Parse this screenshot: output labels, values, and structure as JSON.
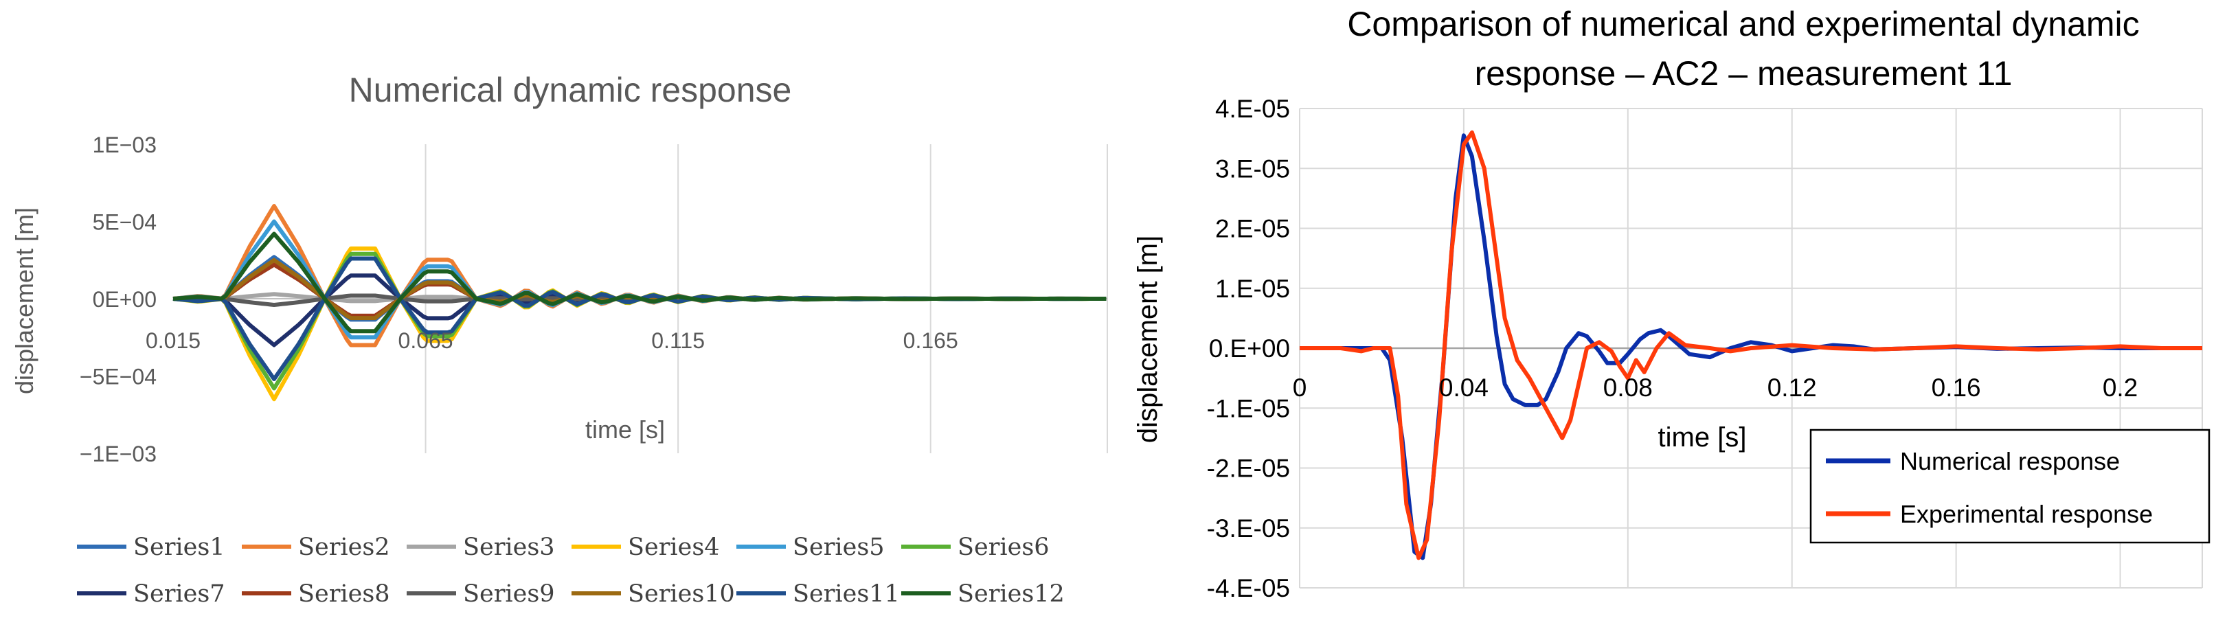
{
  "chart_data": [
    {
      "type": "line",
      "title": "Numerical dynamic response",
      "xlabel": "time [s]",
      "ylabel": "displacement [m]",
      "xlim": [
        0.015,
        0.2
      ],
      "ylim": [
        -0.001,
        0.001
      ],
      "x_ticks": [
        0.015,
        0.065,
        0.115,
        0.165
      ],
      "x_tick_labels": [
        "0.015",
        "0.065",
        "0.115",
        "0.165"
      ],
      "y_ticks": [
        0.001,
        0.0005,
        0,
        -0.0005,
        -0.001
      ],
      "y_tick_labels": [
        "1E−03",
        "5E−04",
        "0E+00",
        "−5E−04",
        "−1E−03"
      ],
      "grid": "vertical",
      "legend_position": "bottom",
      "envelope": {
        "x": [
          0.015,
          0.02,
          0.025,
          0.03,
          0.035,
          0.04,
          0.045,
          0.05,
          0.055,
          0.06,
          0.065,
          0.07,
          0.075,
          0.08,
          0.085,
          0.09,
          0.095,
          0.1,
          0.105,
          0.11,
          0.115,
          0.12,
          0.125,
          0.13,
          0.135,
          0.14,
          0.15,
          0.16,
          0.17,
          0.18,
          0.19,
          0.2
        ],
        "unit": [
          0,
          0.03,
          0,
          0.55,
          1.0,
          0.55,
          0,
          -0.5,
          -0.5,
          0,
          0.42,
          0.42,
          0,
          -0.08,
          0.1,
          -0.09,
          0.07,
          -0.06,
          0.05,
          -0.045,
          0.035,
          -0.03,
          0.02,
          -0.015,
          0.012,
          -0.01,
          0.006,
          -0.004,
          0.003,
          -0.002,
          0.001,
          0
        ]
      },
      "series": [
        {
          "name": "Series1",
          "color": "#2f6db5",
          "amplitude": 0.00027
        },
        {
          "name": "Series2",
          "color": "#ed7d31",
          "amplitude": 0.0006
        },
        {
          "name": "Series3",
          "color": "#a5a5a5",
          "amplitude": 3e-05
        },
        {
          "name": "Series4",
          "color": "#ffc000",
          "amplitude": -0.00065
        },
        {
          "name": "Series5",
          "color": "#3a9bd5",
          "amplitude": 0.0005
        },
        {
          "name": "Series6",
          "color": "#5ab033",
          "amplitude": -0.00058
        },
        {
          "name": "Series7",
          "color": "#1f2f6b",
          "amplitude": -0.0003
        },
        {
          "name": "Series8",
          "color": "#9e3a1a",
          "amplitude": 0.00022
        },
        {
          "name": "Series9",
          "color": "#5a5a5a",
          "amplitude": -4e-05
        },
        {
          "name": "Series10",
          "color": "#9c6a12",
          "amplitude": 0.00025
        },
        {
          "name": "Series11",
          "color": "#1e4e8c",
          "amplitude": -0.00052
        },
        {
          "name": "Series12",
          "color": "#1d5e20",
          "amplitude": 0.00042
        }
      ]
    },
    {
      "type": "line",
      "title": "Comparison of numerical and experimental dynamic response – AC2 – measurement 11",
      "title_lines": [
        "Comparison of numerical and experimental dynamic",
        "response – AC2 – measurement 11"
      ],
      "xlabel": "time [s]",
      "ylabel": "displacement [m]",
      "xlim": [
        0,
        0.22
      ],
      "ylim": [
        -4e-05,
        4e-05
      ],
      "x_ticks": [
        0,
        0.04,
        0.08,
        0.12,
        0.16,
        0.2
      ],
      "x_tick_labels": [
        "0",
        "0.04",
        "0.08",
        "0.12",
        "0.16",
        "0.2"
      ],
      "y_ticks": [
        4e-05,
        3e-05,
        2e-05,
        1e-05,
        0,
        -1e-05,
        -2e-05,
        -3e-05,
        -4e-05
      ],
      "y_tick_labels": [
        "4.E-05",
        "3.E-05",
        "2.E-05",
        "1.E-05",
        "0.E+00",
        "-1.E-05",
        "-2.E-05",
        "-3.E-05",
        "-4.E-05"
      ],
      "grid": "both",
      "legend_position": "bottom-right",
      "series": [
        {
          "name": "Numerical response",
          "color": "#0a2eaa",
          "x": [
            0,
            0.01,
            0.02,
            0.022,
            0.025,
            0.028,
            0.03,
            0.032,
            0.035,
            0.038,
            0.04,
            0.042,
            0.045,
            0.048,
            0.05,
            0.052,
            0.055,
            0.058,
            0.06,
            0.063,
            0.065,
            0.068,
            0.07,
            0.073,
            0.075,
            0.078,
            0.08,
            0.083,
            0.085,
            0.088,
            0.09,
            0.095,
            0.1,
            0.105,
            0.11,
            0.115,
            0.12,
            0.125,
            0.13,
            0.135,
            0.14,
            0.15,
            0.16,
            0.17,
            0.18,
            0.19,
            0.2,
            0.21,
            0.22
          ],
          "y": [
            0,
            0,
            0,
            -2e-06,
            -1.5e-05,
            -3.4e-05,
            -3.5e-05,
            -2.6e-05,
            -3e-06,
            2.5e-05,
            3.55e-05,
            3.2e-05,
            1.8e-05,
            2e-06,
            -6e-06,
            -8.5e-06,
            -9.5e-06,
            -9.5e-06,
            -8.5e-06,
            -4e-06,
            0,
            2.5e-06,
            2e-06,
            -5e-07,
            -2.5e-06,
            -2.5e-06,
            -1e-06,
            1.5e-06,
            2.5e-06,
            3e-06,
            2e-06,
            -1e-06,
            -1.5e-06,
            0,
            1e-06,
            5e-07,
            -5e-07,
            0,
            5e-07,
            3e-07,
            -2e-07,
            0,
            2e-07,
            -1e-07,
            0,
            1e-07,
            0,
            0,
            0
          ]
        },
        {
          "name": "Experimental response",
          "color": "#ff3a0a",
          "x": [
            0,
            0.01,
            0.015,
            0.018,
            0.02,
            0.022,
            0.024,
            0.026,
            0.029,
            0.031,
            0.034,
            0.037,
            0.04,
            0.042,
            0.045,
            0.048,
            0.05,
            0.053,
            0.056,
            0.06,
            0.064,
            0.066,
            0.068,
            0.07,
            0.073,
            0.076,
            0.078,
            0.08,
            0.082,
            0.084,
            0.087,
            0.09,
            0.094,
            0.1,
            0.105,
            0.11,
            0.12,
            0.13,
            0.14,
            0.15,
            0.16,
            0.17,
            0.18,
            0.19,
            0.2,
            0.21,
            0.22
          ],
          "y": [
            0,
            0,
            -5e-07,
            0,
            0,
            0,
            -8e-06,
            -2.6e-05,
            -3.5e-05,
            -3.2e-05,
            -1.2e-05,
            1.6e-05,
            3.4e-05,
            3.6e-05,
            3e-05,
            1.5e-05,
            5e-06,
            -2e-06,
            -5e-06,
            -1e-05,
            -1.5e-05,
            -1.2e-05,
            -6e-06,
            0,
            1e-06,
            -5e-07,
            -3e-06,
            -5e-06,
            -2e-06,
            -4e-06,
            0,
            2.5e-06,
            5e-07,
            0,
            -5e-07,
            0,
            5e-07,
            0,
            -2e-07,
            0,
            3e-07,
            0,
            -2e-07,
            0,
            3e-07,
            0,
            0
          ]
        }
      ]
    }
  ]
}
